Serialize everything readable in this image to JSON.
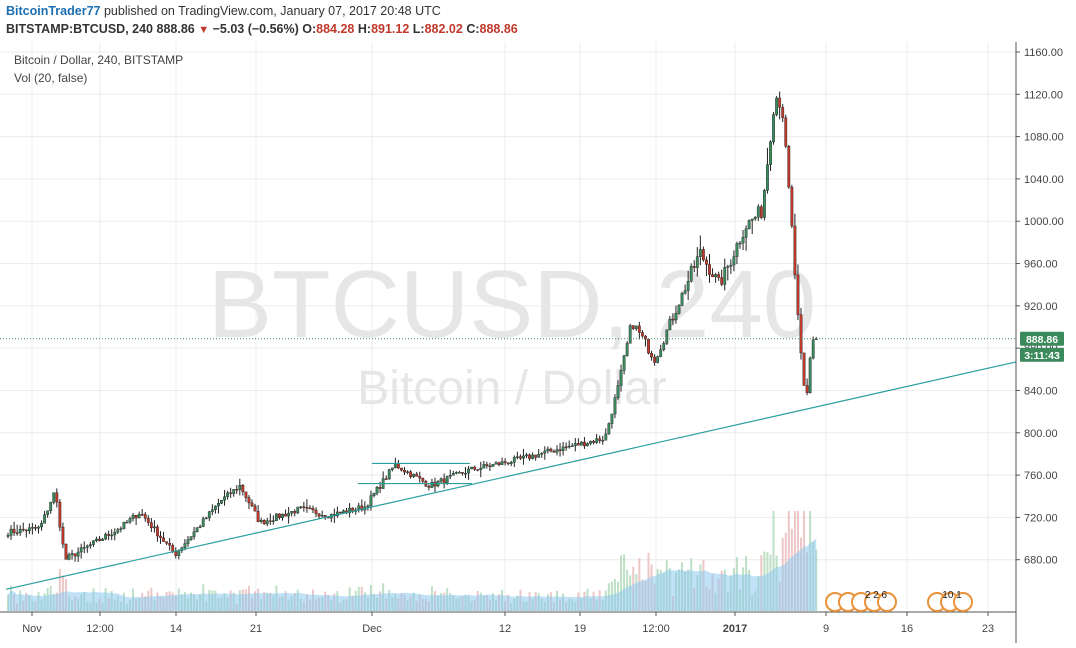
{
  "header": {
    "author": "BitcoinTrader77",
    "published_text": "published on TradingView.com, January 07, 2017 20:48 UTC",
    "symbol": "BITSTAMP:BTCUSD, 240",
    "last": "888.86",
    "change": "−5.03 (−0.56%)",
    "o_label": "O:",
    "o_val": "884.28",
    "h_label": "H:",
    "h_val": "891.12",
    "l_label": "L:",
    "l_val": "882.02",
    "c_label": "C:",
    "c_val": "888.86"
  },
  "legend": {
    "series_title": "Bitcoin / Dollar, 240, BITSTAMP",
    "volume_title": "Vol (20, false)"
  },
  "watermark": {
    "line1": "BTCUSD, 240",
    "line2": "Bitcoin / Dollar"
  },
  "price_badge": "888.86",
  "countdown_badge": "3:11:43",
  "events": {
    "group1": "2 2 6",
    "group2": "10 1"
  },
  "colors": {
    "up": "#3a8a5c",
    "down": "#c0392b",
    "trendline": "#2a9d9d",
    "badge": "#3a8a5c",
    "volume_ma": "#8ec9ee"
  },
  "chart_data": {
    "type": "candlestick",
    "ylim": [
      640,
      1160
    ],
    "yticks": [
      680,
      720,
      760,
      800,
      840,
      880,
      920,
      960,
      1000,
      1040,
      1080,
      1120,
      1160
    ],
    "xticks": [
      "Nov",
      "12:00",
      "14",
      "21",
      "Dec",
      "12",
      "19",
      "12:00",
      "2017",
      "9",
      "16",
      "23"
    ],
    "last_price": 888.86,
    "series": [
      {
        "name": "BTCUSD",
        "anchors": [
          [
            0,
            705
          ],
          [
            40,
            710
          ],
          [
            55,
            745
          ],
          [
            65,
            680
          ],
          [
            120,
            710
          ],
          [
            140,
            725
          ],
          [
            175,
            685
          ],
          [
            220,
            735
          ],
          [
            240,
            750
          ],
          [
            260,
            715
          ],
          [
            300,
            728
          ],
          [
            330,
            722
          ],
          [
            365,
            730
          ],
          [
            395,
            770
          ],
          [
            430,
            750
          ],
          [
            470,
            765
          ],
          [
            520,
            775
          ],
          [
            560,
            785
          ],
          [
            605,
            795
          ],
          [
            620,
            850
          ],
          [
            632,
            905
          ],
          [
            655,
            870
          ],
          [
            700,
            970
          ],
          [
            720,
            940
          ],
          [
            745,
            995
          ],
          [
            762,
            1010
          ],
          [
            775,
            1120
          ],
          [
            782,
            1110
          ],
          [
            792,
            990
          ],
          [
            800,
            880
          ],
          [
            806,
            825
          ],
          [
            812,
            890
          ],
          [
            817,
            888
          ]
        ]
      }
    ],
    "trendlines": [
      {
        "from": [
          "Nov 1",
          652
        ],
        "to": [
          "Jan 15",
          867
        ]
      },
      {
        "from": [
          "Dec 1",
          771
        ],
        "to": [
          "Dec 6",
          771
        ]
      },
      {
        "from": [
          "Dec 1",
          752
        ],
        "to": [
          "Dec 8",
          752
        ]
      }
    ]
  }
}
